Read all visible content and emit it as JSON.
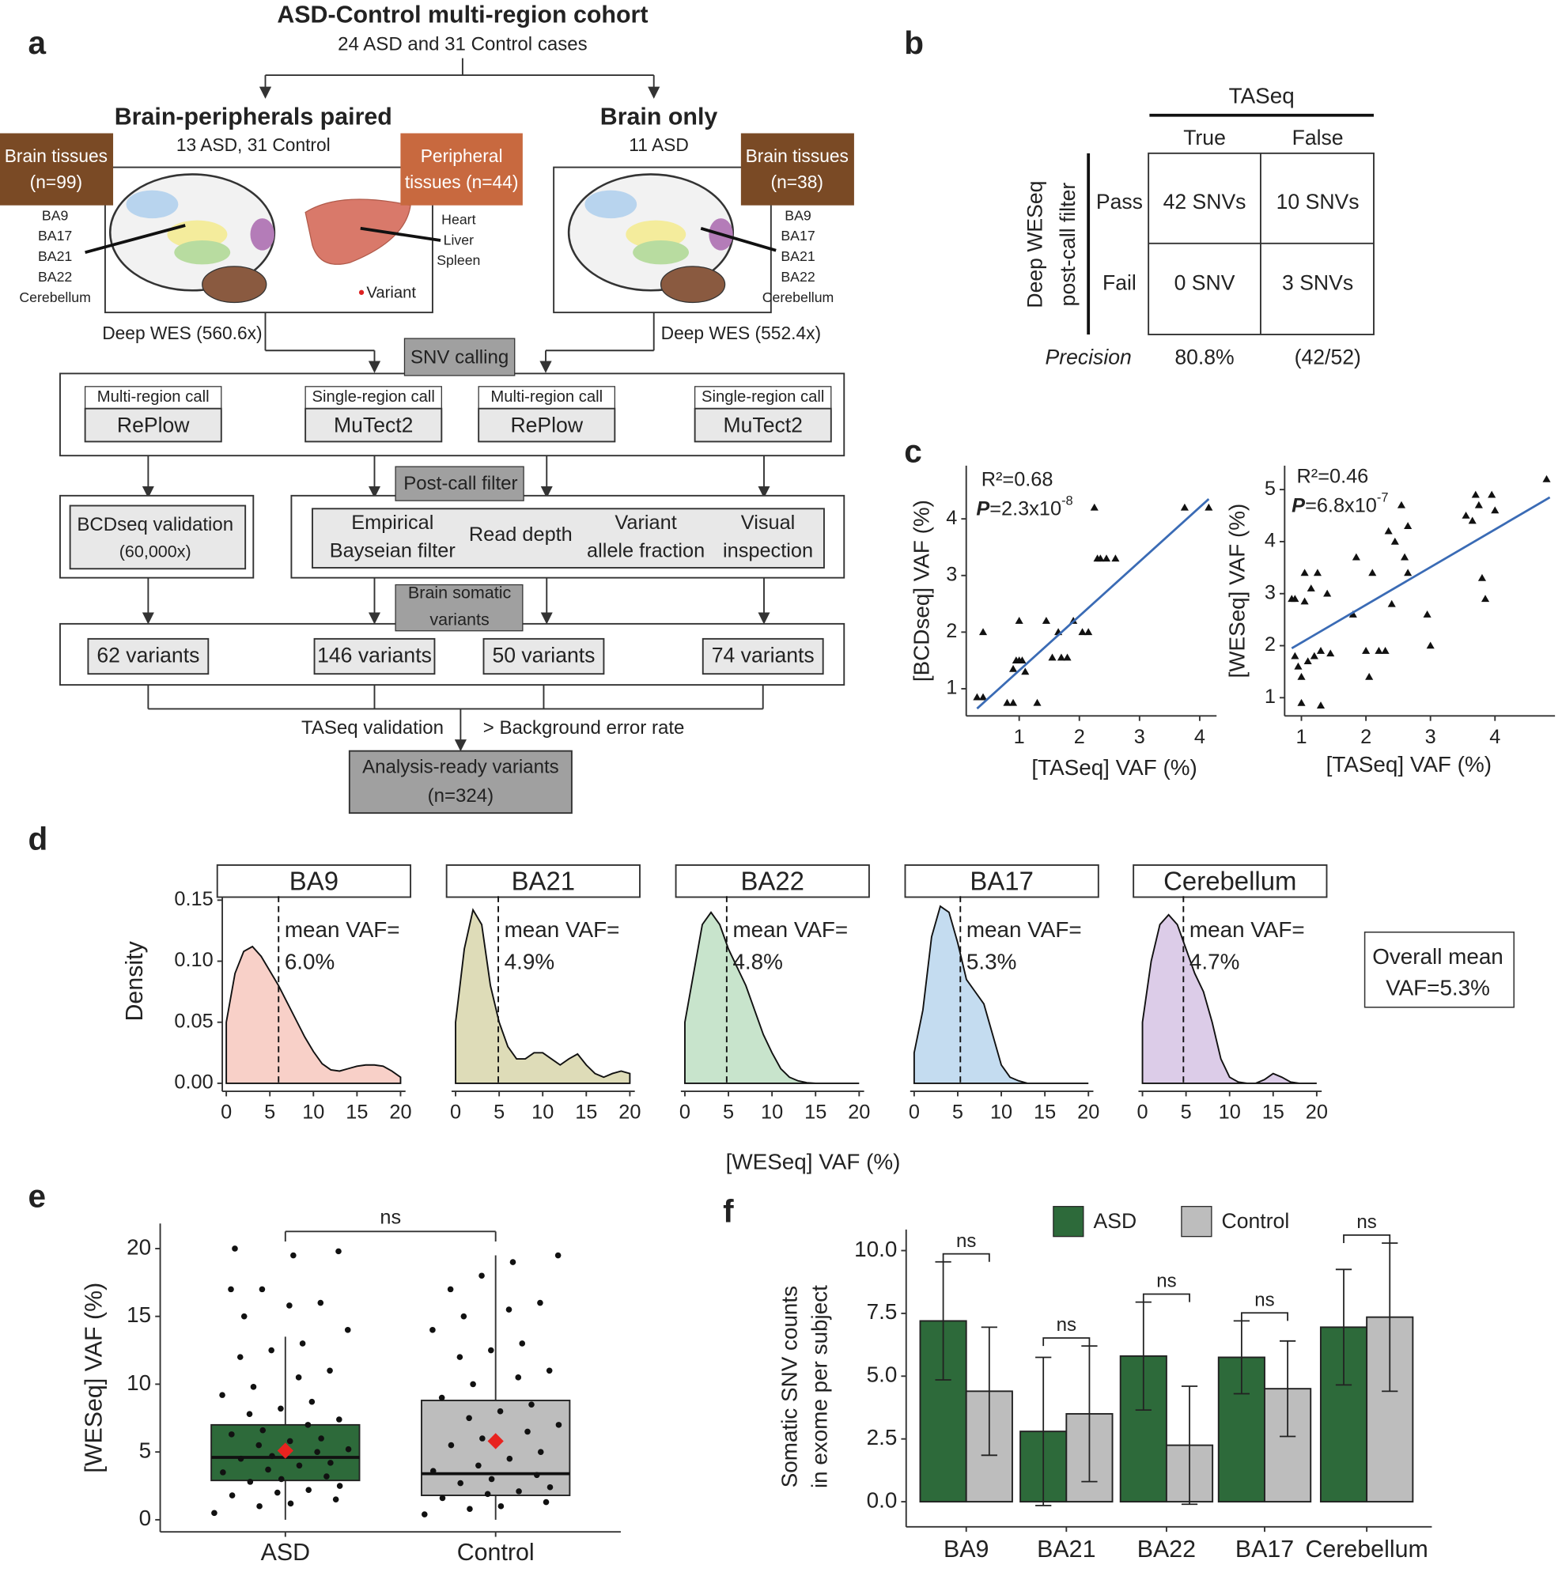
{
  "panel_labels": [
    "a",
    "b",
    "c",
    "d",
    "e",
    "f"
  ],
  "diagram": {
    "title": "ASD-Control multi-region cohort",
    "subtitle": "24 ASD and 31 Control cases",
    "left_title": "Brain-peripherals paired",
    "left_sub": "13 ASD, 31 Control",
    "right_title": "Brain only",
    "right_sub": "11 ASD",
    "brain_left": [
      "Brain tissues",
      "(n=99)"
    ],
    "peripheral": [
      "Peripheral",
      "tissues (n=44)"
    ],
    "brain_right": [
      "Brain tissues",
      "(n=38)"
    ],
    "regions_left": [
      "BA9",
      "BA17",
      "BA21",
      "BA22",
      "Cerebellum"
    ],
    "organs": [
      "Heart",
      "Liver",
      "Spleen"
    ],
    "variant": "Variant",
    "regions_right": [
      "BA9",
      "BA17",
      "BA21",
      "BA22",
      "Cerebellum"
    ],
    "wes_left": "Deep WES (560.6x)",
    "wes_right": "Deep WES (552.4x)",
    "snv_calling": "SNV calling",
    "callers": [
      {
        "label": "Multi-region call",
        "tool": "RePlow"
      },
      {
        "label": "Single-region call",
        "tool": "MuTect2"
      },
      {
        "label": "Multi-region call",
        "tool": "RePlow"
      },
      {
        "label": "Single-region call",
        "tool": "MuTect2"
      }
    ],
    "post_call": "Post-call filter",
    "bcdseq": [
      "BCDseq validation",
      "(60,000x)"
    ],
    "filters": [
      [
        "Empirical",
        "Bayseian filter"
      ],
      [
        "Read depth"
      ],
      [
        "Variant",
        "allele fraction"
      ],
      [
        "Visual",
        "inspection"
      ]
    ],
    "brain_somatic": [
      "Brain somatic",
      "variants"
    ],
    "variants": [
      "62 variants",
      "146 variants",
      "50 variants",
      "74 variants"
    ],
    "taseq": "TASeq validation",
    "background": "> Background error rate",
    "final": [
      "Analysis-ready variants",
      "(n=324)"
    ]
  },
  "table": {
    "header": "TASeq",
    "columns": [
      "True",
      "False"
    ],
    "row_header": [
      "Deep WESeq",
      "post-call filter"
    ],
    "rows": [
      {
        "label": "Pass",
        "cells": [
          "42 SNVs",
          "10 SNVs"
        ]
      },
      {
        "label": "Fail",
        "cells": [
          "0 SNV",
          "3 SNVs"
        ]
      }
    ],
    "precision": {
      "label": "Precision",
      "value": "80.8%",
      "fraction": "(42/52)"
    }
  },
  "chart_data": [
    {
      "type": "scatter",
      "xlabel": "[TASeq] VAF (%)",
      "ylabel": "[BCDseq] VAF (%)",
      "r2": "R²=0.68",
      "p": {
        "label": "P",
        "value": "=2.3x10",
        "exponent": "-8"
      },
      "color": "#111111",
      "xlim": [
        0.12,
        4.28
      ],
      "ylim": [
        0.52,
        4.94
      ],
      "xticks": [
        1,
        2,
        3,
        4
      ],
      "yticks": [
        1,
        2,
        3,
        4
      ],
      "x": [
        0.3,
        0.4,
        0.4,
        0.8,
        0.9,
        0.9,
        0.95,
        1.0,
        1.0,
        1.05,
        1.1,
        1.3,
        1.45,
        1.55,
        1.65,
        1.7,
        1.8,
        1.9,
        2.05,
        2.15,
        2.25,
        2.3,
        2.35,
        2.45,
        2.6,
        3.75,
        4.15
      ],
      "values": [
        0.85,
        0.85,
        2.0,
        0.75,
        0.75,
        1.35,
        1.5,
        1.5,
        2.2,
        1.5,
        1.3,
        0.75,
        2.2,
        1.55,
        2.0,
        1.55,
        1.55,
        2.2,
        2.0,
        2.0,
        4.2,
        3.3,
        3.3,
        3.3,
        3.3,
        4.2,
        4.2
      ],
      "fit": {
        "x": [
          0.3,
          4.15
        ],
        "y": [
          0.65,
          4.35
        ],
        "color": "#3a6bb5"
      }
    },
    {
      "type": "scatter",
      "xlabel": "[TASeq] VAF (%)",
      "ylabel": "[WESeq] VAF (%)",
      "r2": "R²=0.46",
      "p": {
        "label": "P",
        "value": "=6.8x10",
        "exponent": "-7"
      },
      "color": "#111111",
      "xlim": [
        0.74,
        4.93
      ],
      "ylim": [
        0.65,
        5.46
      ],
      "xticks": [
        1,
        2,
        3,
        4
      ],
      "yticks": [
        1,
        2,
        3,
        4,
        5
      ],
      "x": [
        0.85,
        0.9,
        0.9,
        0.95,
        1.0,
        1.0,
        1.05,
        1.05,
        1.1,
        1.15,
        1.2,
        1.25,
        1.3,
        1.3,
        1.4,
        1.45,
        1.8,
        1.85,
        2.0,
        2.05,
        2.1,
        2.2,
        2.3,
        2.35,
        2.4,
        2.45,
        2.55,
        2.6,
        2.65,
        2.65,
        2.95,
        3.0,
        3.55,
        3.65,
        3.7,
        3.75,
        3.8,
        3.85,
        3.95,
        4.0,
        4.8
      ],
      "values": [
        2.9,
        2.9,
        1.8,
        1.6,
        1.4,
        0.9,
        3.4,
        2.85,
        1.7,
        3.1,
        1.8,
        3.4,
        0.85,
        1.9,
        3.0,
        1.85,
        2.6,
        3.7,
        1.9,
        1.4,
        3.4,
        1.9,
        1.9,
        4.2,
        2.8,
        4.0,
        4.7,
        3.7,
        4.3,
        3.4,
        2.6,
        2.0,
        4.5,
        4.4,
        4.9,
        4.7,
        3.3,
        2.9,
        4.9,
        4.6,
        5.2
      ],
      "fit": {
        "x": [
          0.85,
          4.85
        ],
        "y": [
          1.95,
          4.85
        ],
        "color": "#3a6bb5"
      }
    },
    {
      "type": "density",
      "xlabel": "[WESeq] VAF (%)",
      "ylabel": "Density",
      "xlim": [
        -0.46,
        20.57
      ],
      "ylim": [
        -0.0066,
        0.1533
      ],
      "xticks": [
        0,
        5,
        10,
        15,
        20
      ],
      "yticks": [
        {
          "value": 0,
          "label": "0.00"
        },
        {
          "value": 0.05,
          "label": "0.05"
        },
        {
          "value": 0.1,
          "label": "0.10"
        },
        {
          "value": 0.15,
          "label": "0.15"
        }
      ],
      "annotation": [
        "Overall mean",
        "VAF=5.3%"
      ],
      "series": [
        {
          "name": "BA9",
          "color": "#f8d0c8",
          "mean": 6.0,
          "mean_label": [
            "mean VAF=",
            "6.0%"
          ],
          "x": [
            0,
            1,
            2,
            3,
            4,
            5,
            6,
            7,
            8,
            9,
            10,
            11,
            12,
            13,
            14,
            15,
            16,
            17,
            18,
            19,
            20
          ],
          "values": [
            0.05,
            0.09,
            0.108,
            0.112,
            0.104,
            0.092,
            0.08,
            0.066,
            0.052,
            0.038,
            0.026,
            0.016,
            0.011,
            0.01,
            0.012,
            0.014,
            0.015,
            0.015,
            0.014,
            0.01,
            0.005
          ]
        },
        {
          "name": "BA21",
          "color": "#dedcb8",
          "mean": 4.9,
          "mean_label": [
            "mean VAF=",
            "4.9%"
          ],
          "x": [
            0,
            1,
            2,
            3,
            4,
            5,
            6,
            7,
            8,
            9,
            10,
            11,
            12,
            13,
            14,
            15,
            16,
            17,
            18,
            19,
            20
          ],
          "values": [
            0.05,
            0.11,
            0.142,
            0.13,
            0.08,
            0.05,
            0.03,
            0.02,
            0.02,
            0.025,
            0.025,
            0.02,
            0.015,
            0.02,
            0.024,
            0.015,
            0.008,
            0.005,
            0.008,
            0.01,
            0.008
          ]
        },
        {
          "name": "BA22",
          "color": "#c8e4cc",
          "mean": 4.8,
          "mean_label": [
            "mean VAF=",
            "4.8%"
          ],
          "x": [
            0,
            1,
            2,
            3,
            4,
            5,
            6,
            7,
            8,
            9,
            10,
            11,
            12,
            13,
            14,
            15,
            16,
            17,
            18,
            19,
            20
          ],
          "values": [
            0.05,
            0.09,
            0.13,
            0.14,
            0.13,
            0.11,
            0.095,
            0.08,
            0.06,
            0.04,
            0.025,
            0.012,
            0.005,
            0.002,
            0.0005,
            0,
            0,
            0,
            0,
            0,
            0
          ]
        },
        {
          "name": "BA17",
          "color": "#c4dcf0",
          "mean": 5.3,
          "mean_label": [
            "mean VAF=",
            "5.3%"
          ],
          "x": [
            0,
            1,
            2,
            3,
            4,
            5,
            6,
            7,
            8,
            9,
            10,
            11,
            12,
            13,
            14,
            15,
            16,
            17,
            18,
            19,
            20
          ],
          "values": [
            0.025,
            0.06,
            0.12,
            0.145,
            0.14,
            0.115,
            0.085,
            0.075,
            0.065,
            0.04,
            0.015,
            0.005,
            0.002,
            0,
            0,
            0,
            0,
            0,
            0,
            0,
            0
          ]
        },
        {
          "name": "Cerebellum",
          "color": "#dccce8",
          "mean": 4.7,
          "mean_label": [
            "mean VAF=",
            "4.7%"
          ],
          "x": [
            0,
            1,
            2,
            3,
            4,
            5,
            6,
            7,
            8,
            9,
            10,
            11,
            12,
            13,
            14,
            15,
            16,
            17,
            18,
            19,
            20
          ],
          "values": [
            0.05,
            0.1,
            0.13,
            0.138,
            0.13,
            0.11,
            0.09,
            0.075,
            0.05,
            0.02,
            0.005,
            0.001,
            0,
            0,
            0.003,
            0.008,
            0.005,
            0.001,
            0,
            0,
            0
          ]
        }
      ]
    },
    {
      "type": "box",
      "ylabel": "[WESeq] VAF (%)",
      "categories": [
        "ASD",
        "Control"
      ],
      "annotation": "ns",
      "ylim": [
        -0.89,
        21.85
      ],
      "yticks": [
        0,
        5,
        10,
        15,
        20
      ],
      "mean_color": "#e8231f",
      "boxes": [
        {
          "color": "#2d6a3a",
          "whisker_low": 0,
          "q1": 2.9,
          "median": 4.6,
          "q3": 7.0,
          "whisker_high": 13.5,
          "mean": 5.1,
          "points": [
            0.5,
            1,
            1.2,
            1.5,
            1.8,
            2,
            2.2,
            2.5,
            2.8,
            3,
            3.2,
            3.5,
            3.7,
            4,
            4.2,
            4.5,
            4.7,
            5,
            5.2,
            5.5,
            5.8,
            6,
            6.3,
            6.6,
            7,
            7.4,
            7.8,
            8.2,
            8.7,
            9.2,
            9.8,
            10.5,
            11,
            12,
            12.5,
            13,
            14,
            15,
            15.8,
            16,
            17,
            17,
            19.5,
            19.8,
            20
          ]
        },
        {
          "color": "#bdbdbd",
          "whisker_low": 0,
          "q1": 1.8,
          "median": 3.4,
          "q3": 8.8,
          "whisker_high": 19.5,
          "mean": 5.8,
          "points": [
            0.4,
            0.8,
            1,
            1.3,
            1.6,
            1.9,
            2.1,
            2.4,
            2.7,
            3,
            3.3,
            3.6,
            4,
            4.5,
            5,
            5.5,
            6,
            6.5,
            7,
            7.5,
            8,
            8.5,
            9,
            10,
            10.5,
            11,
            12,
            12.5,
            13,
            14,
            15,
            15.5,
            16,
            17,
            18,
            19,
            19.5
          ]
        }
      ]
    },
    {
      "type": "bar",
      "ylabel": [
        "Somatic SNV counts",
        "in exome per subject"
      ],
      "categories": [
        "BA9",
        "BA21",
        "BA22",
        "BA17",
        "Cerebellum"
      ],
      "ylim": [
        -1,
        10.84
      ],
      "yticks": [
        {
          "value": 0,
          "label": "0.0"
        },
        {
          "value": 2.5,
          "label": "2.5"
        },
        {
          "value": 5,
          "label": "5.0"
        },
        {
          "value": 7.5,
          "label": "7.5"
        },
        {
          "value": 10,
          "label": "10.0"
        }
      ],
      "legend": "top",
      "annotations": [
        "ns",
        "ns",
        "ns",
        "ns",
        "ns"
      ],
      "series": [
        {
          "name": "ASD",
          "color": "#2d6a3a",
          "values": [
            7.2,
            2.8,
            5.8,
            5.75,
            6.95
          ],
          "errors": [
            2.35,
            2.95,
            2.15,
            1.45,
            2.3
          ]
        },
        {
          "name": "Control",
          "color": "#bdbdbd",
          "values": [
            4.4,
            3.5,
            2.25,
            4.5,
            7.35
          ],
          "errors": [
            2.55,
            2.7,
            2.35,
            1.9,
            2.95
          ]
        }
      ]
    }
  ]
}
